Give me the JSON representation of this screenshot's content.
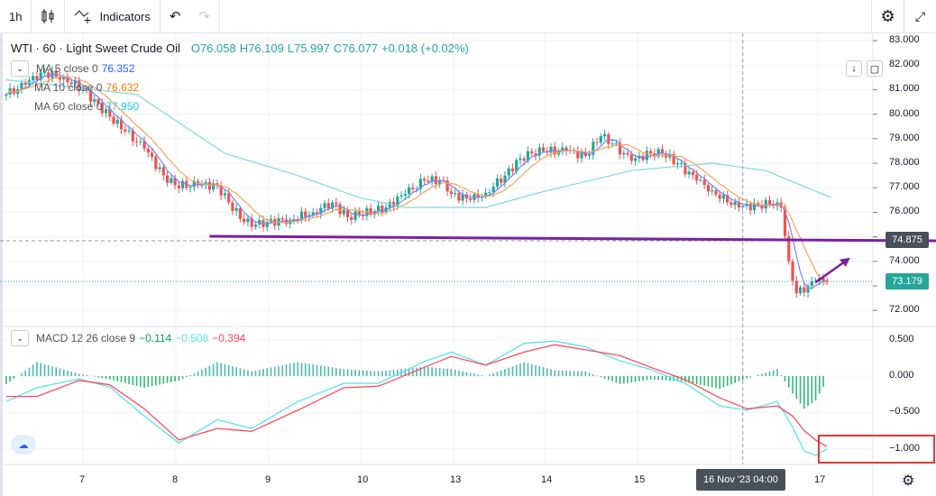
{
  "toolbar": {
    "interval": "1h",
    "chart_type_icon": "candles-icon",
    "indicators_label": "Indicators",
    "undo_icon": "undo-icon",
    "redo_icon": "redo-icon",
    "settings_icon": "gear-icon",
    "fullscreen_icon": "fullscreen-icon"
  },
  "symbol": {
    "title": "WTI · 60 · Light Sweet Crude Oil",
    "open": "O76.058",
    "high": "H76.109",
    "low": "L75.997",
    "close": "C76.077",
    "change": "+0.018 (+0.02%)"
  },
  "indicators": [
    {
      "label": "MA 5 close 0",
      "value": "76.352",
      "color": "#2962ff"
    },
    {
      "label": "MA 10 close 0",
      "value": "76.632",
      "color": "#f57c00"
    },
    {
      "label": "MA 60 close 0",
      "value": "77.950",
      "color": "#26c6da"
    }
  ],
  "macd": {
    "label": "MACD 12 26 close 9",
    "histogram": "−0.114",
    "macd": "−0.508",
    "signal": "−0.394",
    "colors": {
      "histogram": "#00a651",
      "macd": "#5ce1f0",
      "signal": "#ff4a5a"
    }
  },
  "price_axis": [
    "83.000",
    "82.000",
    "81.000",
    "80.000",
    "79.000",
    "78.000",
    "77.000",
    "76.000",
    "75.000",
    "74.000",
    "73.000",
    "72.000"
  ],
  "macd_axis": [
    "0.500",
    "0.000",
    "−0.500",
    "−1.000"
  ],
  "time_axis": [
    "7",
    "8",
    "9",
    "10",
    "13",
    "14",
    "15",
    "17"
  ],
  "crosshair": {
    "time": "16 Nov '23   04:00"
  },
  "price_tags": {
    "horizontal_line": "74.875",
    "last_price": "73.179"
  },
  "colors": {
    "up": "#26a69a",
    "down": "#ef5350",
    "drawing": "#7b1fa2",
    "highlight_box": "#e53935"
  },
  "chart_data": {
    "type": "candlestick",
    "symbol": "WTI",
    "interval": "60",
    "closes": [
      [
        "Nov 6 04:00",
        80.8
      ],
      [
        "Nov 6 09:00",
        81.2
      ],
      [
        "Nov 6 13:00",
        81.7
      ],
      [
        "Nov 6 19:00",
        81.5
      ],
      [
        "Nov 7 00:00",
        81.0
      ],
      [
        "Nov 7 07:00",
        79.9
      ],
      [
        "Nov 7 11:00",
        79.3
      ],
      [
        "Nov 7 16:00",
        78.6
      ],
      [
        "Nov 7 21:00",
        77.5
      ],
      [
        "Nov 8 00:00",
        77.1
      ],
      [
        "Nov 8 06:00",
        77.1
      ],
      [
        "Nov 8 11:00",
        77.1
      ],
      [
        "Nov 8 14:00",
        76.4
      ],
      [
        "Nov 8 18:00",
        75.6
      ],
      [
        "Nov 8 21:00",
        75.5
      ],
      [
        "Nov 9 00:00",
        75.6
      ],
      [
        "Nov 9 06:00",
        75.7
      ],
      [
        "Nov 9 12:00",
        76.0
      ],
      [
        "Nov 9 17:00",
        76.4
      ],
      [
        "Nov 9 21:00",
        75.8
      ],
      [
        "Nov 10 00:00",
        75.9
      ],
      [
        "Nov 10 07:00",
        76.2
      ],
      [
        "Nov 10 12:00",
        76.75
      ],
      [
        "Nov 10 17:00",
        77.3
      ],
      [
        "Nov 10 22:00",
        77.3
      ],
      [
        "Nov 13 00:00",
        76.75
      ],
      [
        "Nov 13 05:00",
        76.5
      ],
      [
        "Nov 13 09:00",
        76.8
      ],
      [
        "Nov 13 14:00",
        77.5
      ],
      [
        "Nov 13 18:00",
        78.2
      ],
      [
        "Nov 13 21:00",
        78.4
      ],
      [
        "Nov 14 00:00",
        78.5
      ],
      [
        "Nov 14 06:00",
        78.5
      ],
      [
        "Nov 14 11:00",
        78.3
      ],
      [
        "Nov 14 15:00",
        79.1
      ],
      [
        "Nov 14 18:00",
        78.8
      ],
      [
        "Nov 14 23:00",
        78.1
      ],
      [
        "Nov 15 00:00",
        78.2
      ],
      [
        "Nov 15 04:00",
        78.4
      ],
      [
        "Nov 15 07:00",
        78.4
      ],
      [
        "Nov 15 11:00",
        78.0
      ],
      [
        "Nov 15 16:00",
        77.3
      ],
      [
        "Nov 15 20:00",
        76.9
      ],
      [
        "Nov 16 00:00",
        76.4
      ],
      [
        "Nov 16 03:00",
        76.2
      ],
      [
        "Nov 16 08:00",
        76.3
      ],
      [
        "Nov 16 13:00",
        76.4
      ],
      [
        "Nov 16 14:00",
        76.2
      ],
      [
        "Nov 16 16:00",
        74.0
      ],
      [
        "Nov 16 18:00",
        72.7
      ],
      [
        "Nov 16 21:00",
        73.0
      ],
      [
        "Nov 16 23:00",
        73.2
      ],
      [
        "Nov 17 02:00",
        73.179
      ]
    ],
    "ma60": [
      [
        "Nov 6 04:00",
        81.4
      ],
      [
        "Nov 7 14:00",
        80.8
      ],
      [
        "Nov 8 13:00",
        78.4
      ],
      [
        "Nov 9 08:00",
        77.5
      ],
      [
        "Nov 10 00:00",
        76.6
      ],
      [
        "Nov 10 12:00",
        76.2
      ],
      [
        "Nov 13 09:00",
        76.2
      ],
      [
        "Nov 13 23:00",
        76.8
      ],
      [
        "Nov 14 23:00",
        77.7
      ],
      [
        "Nov 15 20:00",
        78.0
      ],
      [
        "Nov 16 10:00",
        77.7
      ],
      [
        "Nov 17 03:00",
        76.6
      ]
    ],
    "macd_times": [
      "Nov 6 04:00",
      "Nov 6 12:00",
      "Nov 6 23:00",
      "Nov 7 07:00",
      "Nov 7 16:00",
      "Nov 8 01:00",
      "Nov 8 11:00",
      "Nov 8 20:00",
      "Nov 9 08:00",
      "Nov 9 20:00",
      "Nov 10 05:00",
      "Nov 10 17:00",
      "Nov 13 00:00",
      "Nov 13 09:00",
      "Nov 13 19:00",
      "Nov 14 03:00",
      "Nov 14 11:00",
      "Nov 14 20:00",
      "Nov 15 04:00",
      "Nov 15 13:00",
      "Nov 15 22:00",
      "Nov 16 05:00",
      "Nov 16 13:00",
      "Nov 16 17:00",
      "Nov 16 20:00",
      "Nov 16 23:00",
      "Nov 17 02:00"
    ],
    "macd_line": [
      -0.35,
      -0.16,
      -0.04,
      -0.15,
      -0.55,
      -0.92,
      -0.6,
      -0.72,
      -0.35,
      -0.1,
      -0.1,
      0.2,
      0.33,
      0.15,
      0.45,
      0.48,
      0.4,
      0.21,
      0.09,
      -0.1,
      -0.41,
      -0.47,
      -0.35,
      -0.7,
      -1.03,
      -1.09,
      -1.0
    ],
    "signal_line": [
      -0.28,
      -0.28,
      -0.06,
      -0.12,
      -0.45,
      -0.88,
      -0.72,
      -0.76,
      -0.47,
      -0.16,
      -0.14,
      0.12,
      0.27,
      0.15,
      0.33,
      0.43,
      0.36,
      0.28,
      0.12,
      -0.05,
      -0.3,
      -0.45,
      -0.41,
      -0.55,
      -0.75,
      -0.88,
      -0.97
    ],
    "drawings": {
      "horizontal_line": {
        "from": "Nov 8 09:00",
        "price": 74.875
      },
      "arrow": {
        "from": [
          "Nov 16 23:00",
          73.15
        ],
        "to": [
          "Nov 17 08:00",
          74.15
        ]
      }
    },
    "price_range": [
      72,
      83
    ],
    "macd_range": [
      -1,
      0.5
    ],
    "grid": true
  }
}
